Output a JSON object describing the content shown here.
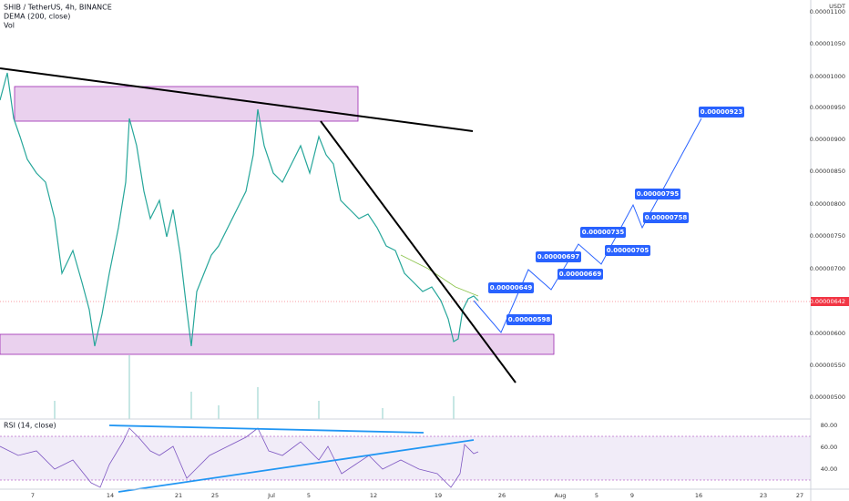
{
  "header": {
    "symbol": "SHIB / TetherUS, 4h, BINANCE",
    "indicator": "DEMA (200, close)",
    "volume": "Vol",
    "currency": "USDT"
  },
  "price_axis": [
    "0.00001100",
    "0.00001050",
    "0.00001000",
    "0.00000950",
    "0.00000900",
    "0.00000850",
    "0.00000800",
    "0.00000750",
    "0.00000700",
    "0.00000600",
    "0.00000550",
    "0.00000500"
  ],
  "current_price": "0.00000642",
  "targets": [
    "0.00000923",
    "0.00000795",
    "0.00000758",
    "0.00000735",
    "0.00000705",
    "0.00000697",
    "0.00000669",
    "0.00000649",
    "0.00000598"
  ],
  "rsi": {
    "label": "RSI (14, close)",
    "axis": [
      "80.00",
      "60.00",
      "40.00"
    ]
  },
  "dates": [
    "7",
    "14",
    "21",
    "25",
    "Jul",
    "5",
    "12",
    "19",
    "26",
    "Aug",
    "5",
    "9",
    "16",
    "23",
    "27"
  ]
}
